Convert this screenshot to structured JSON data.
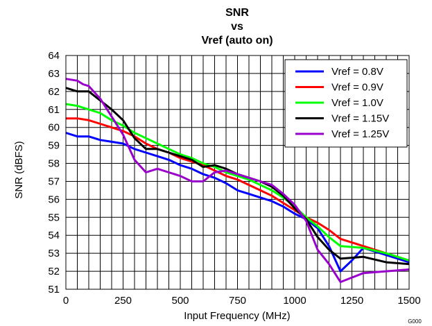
{
  "figure_code": "G000",
  "chart_data": {
    "type": "line",
    "title": [
      "SNR",
      "vs",
      "Vref (auto on)"
    ],
    "xlabel": "Input Frequency (MHz)",
    "ylabel": "SNR (dBFS)",
    "xlim": [
      0,
      1500
    ],
    "ylim": [
      51,
      64
    ],
    "x_ticks": [
      0,
      250,
      500,
      750,
      1000,
      1250,
      1500
    ],
    "y_ticks": [
      51,
      52,
      53,
      54,
      55,
      56,
      57,
      58,
      59,
      60,
      61,
      62,
      63,
      64
    ],
    "x_grid_step": 50,
    "grid": true,
    "legend_position": "top-right",
    "series": [
      {
        "name": "Vref = 0.8V",
        "color": "#0000ff",
        "points": [
          [
            0,
            59.7
          ],
          [
            50,
            59.5
          ],
          [
            100,
            59.5
          ],
          [
            150,
            59.3
          ],
          [
            200,
            59.2
          ],
          [
            250,
            59.1
          ],
          [
            300,
            58.8
          ],
          [
            350,
            58.6
          ],
          [
            400,
            58.4
          ],
          [
            450,
            58.2
          ],
          [
            500,
            57.9
          ],
          [
            550,
            57.7
          ],
          [
            600,
            57.4
          ],
          [
            650,
            57.2
          ],
          [
            700,
            56.9
          ],
          [
            750,
            56.5
          ],
          [
            800,
            56.3
          ],
          [
            850,
            56.1
          ],
          [
            900,
            55.9
          ],
          [
            950,
            55.6
          ],
          [
            1000,
            55.2
          ],
          [
            1050,
            54.9
          ],
          [
            1100,
            54.4
          ],
          [
            1150,
            53.4
          ],
          [
            1200,
            52.0
          ],
          [
            1250,
            52.6
          ],
          [
            1300,
            53.3
          ],
          [
            1400,
            52.9
          ],
          [
            1500,
            52.5
          ]
        ]
      },
      {
        "name": "Vref = 0.9V",
        "color": "#ff0000",
        "points": [
          [
            0,
            60.5
          ],
          [
            50,
            60.5
          ],
          [
            100,
            60.4
          ],
          [
            150,
            60.2
          ],
          [
            200,
            60.0
          ],
          [
            250,
            59.8
          ],
          [
            300,
            59.5
          ],
          [
            350,
            59.1
          ],
          [
            400,
            58.8
          ],
          [
            450,
            58.6
          ],
          [
            500,
            58.3
          ],
          [
            550,
            58.1
          ],
          [
            600,
            57.9
          ],
          [
            650,
            57.6
          ],
          [
            700,
            57.3
          ],
          [
            750,
            57.1
          ],
          [
            800,
            56.8
          ],
          [
            850,
            56.5
          ],
          [
            900,
            56.2
          ],
          [
            950,
            55.8
          ],
          [
            1000,
            55.4
          ],
          [
            1050,
            55.0
          ],
          [
            1100,
            54.7
          ],
          [
            1150,
            54.3
          ],
          [
            1200,
            53.8
          ],
          [
            1300,
            53.4
          ],
          [
            1400,
            53.0
          ],
          [
            1500,
            52.6
          ]
        ]
      },
      {
        "name": "Vref = 1.0V",
        "color": "#00ff00",
        "points": [
          [
            0,
            61.3
          ],
          [
            50,
            61.2
          ],
          [
            100,
            61.0
          ],
          [
            150,
            60.8
          ],
          [
            200,
            60.4
          ],
          [
            250,
            60.1
          ],
          [
            300,
            59.7
          ],
          [
            350,
            59.4
          ],
          [
            400,
            59.1
          ],
          [
            450,
            58.8
          ],
          [
            500,
            58.5
          ],
          [
            550,
            58.3
          ],
          [
            600,
            58.0
          ],
          [
            650,
            57.8
          ],
          [
            700,
            57.5
          ],
          [
            750,
            57.3
          ],
          [
            800,
            57.1
          ],
          [
            850,
            56.8
          ],
          [
            900,
            56.5
          ],
          [
            950,
            56.1
          ],
          [
            1000,
            55.6
          ],
          [
            1050,
            55.0
          ],
          [
            1100,
            54.5
          ],
          [
            1150,
            53.9
          ],
          [
            1200,
            53.4
          ],
          [
            1300,
            53.3
          ],
          [
            1400,
            53.0
          ],
          [
            1500,
            52.6
          ]
        ]
      },
      {
        "name": "Vref = 1.15V",
        "color": "#000000",
        "points": [
          [
            0,
            62.2
          ],
          [
            50,
            62.0
          ],
          [
            100,
            62.0
          ],
          [
            150,
            61.5
          ],
          [
            200,
            61.0
          ],
          [
            250,
            60.4
          ],
          [
            300,
            59.4
          ],
          [
            350,
            58.8
          ],
          [
            400,
            58.8
          ],
          [
            450,
            58.6
          ],
          [
            500,
            58.4
          ],
          [
            550,
            58.2
          ],
          [
            600,
            57.8
          ],
          [
            650,
            57.9
          ],
          [
            700,
            57.7
          ],
          [
            750,
            57.4
          ],
          [
            800,
            57.2
          ],
          [
            850,
            57.0
          ],
          [
            900,
            56.7
          ],
          [
            950,
            56.2
          ],
          [
            1000,
            55.5
          ],
          [
            1050,
            54.9
          ],
          [
            1100,
            53.9
          ],
          [
            1150,
            53.2
          ],
          [
            1200,
            52.7
          ],
          [
            1300,
            52.8
          ],
          [
            1400,
            52.5
          ],
          [
            1500,
            52.4
          ]
        ]
      },
      {
        "name": "Vref = 1.25V",
        "color": "#9900cc",
        "points": [
          [
            0,
            62.7
          ],
          [
            50,
            62.6
          ],
          [
            75,
            62.4
          ],
          [
            100,
            62.3
          ],
          [
            150,
            61.6
          ],
          [
            200,
            60.6
          ],
          [
            250,
            59.6
          ],
          [
            300,
            58.2
          ],
          [
            350,
            57.5
          ],
          [
            400,
            57.7
          ],
          [
            450,
            57.5
          ],
          [
            500,
            57.3
          ],
          [
            550,
            57.0
          ],
          [
            600,
            57.0
          ],
          [
            650,
            57.5
          ],
          [
            700,
            57.6
          ],
          [
            750,
            57.4
          ],
          [
            800,
            57.2
          ],
          [
            850,
            57.0
          ],
          [
            900,
            56.8
          ],
          [
            950,
            56.3
          ],
          [
            1000,
            55.7
          ],
          [
            1050,
            54.8
          ],
          [
            1100,
            53.2
          ],
          [
            1150,
            52.4
          ],
          [
            1200,
            51.4
          ],
          [
            1300,
            51.9
          ],
          [
            1400,
            52.0
          ],
          [
            1500,
            52.1
          ]
        ]
      }
    ]
  }
}
